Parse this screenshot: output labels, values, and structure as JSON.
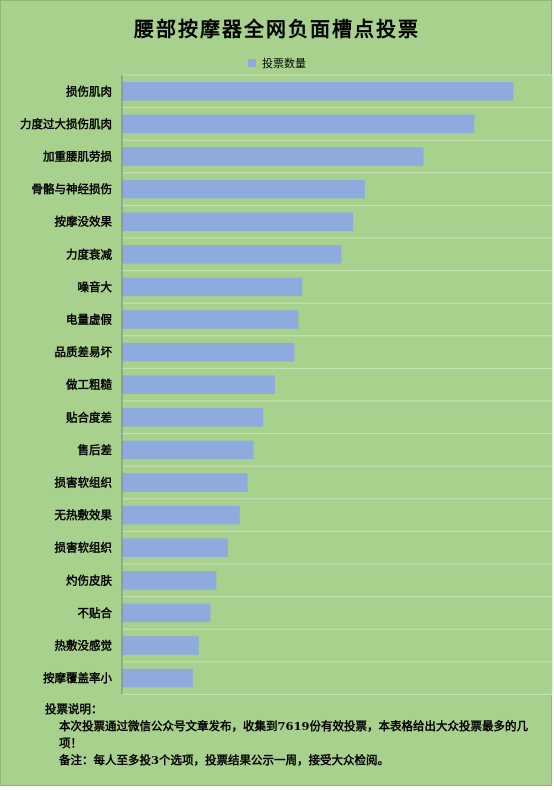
{
  "chart_data": {
    "type": "bar",
    "orientation": "horizontal",
    "title": "腰部按摩器全网负面槽点投票",
    "legend_position": "top",
    "grid": true,
    "colors": {
      "bar": "#8faadc",
      "background": "#a9d18e",
      "grid": "#c9e3b8"
    },
    "categories": [
      "损伤肌肉",
      "力度过大损伤肌肉",
      "加重腰肌劳损",
      "骨骼与神经损伤",
      "按摩没效果",
      "力度衰减",
      "噪音大",
      "电量虚假",
      "品质差易坏",
      "做工粗糙",
      "贴合度差",
      "售后差",
      "损害软组织",
      "无热敷效果",
      "损害软组织",
      "灼伤皮肤",
      "不贴合",
      "热敷没感觉",
      "按摩覆盖率小"
    ],
    "series": [
      {
        "name": "投票数量",
        "values": [
          1000,
          900,
          770,
          620,
          590,
          560,
          460,
          450,
          440,
          390,
          360,
          335,
          320,
          300,
          270,
          240,
          225,
          195,
          180
        ]
      }
    ],
    "xlim": [
      0,
      1100
    ]
  },
  "notes": {
    "heading": "投票说明：",
    "line1": "本次投票通过微信公众号文章发布，收集到7619份有效投票，本表格给出大众投票最多的几项！",
    "line2": "备注：每人至多投3个选项，投票结果公示一周，接受大众检阅。"
  }
}
